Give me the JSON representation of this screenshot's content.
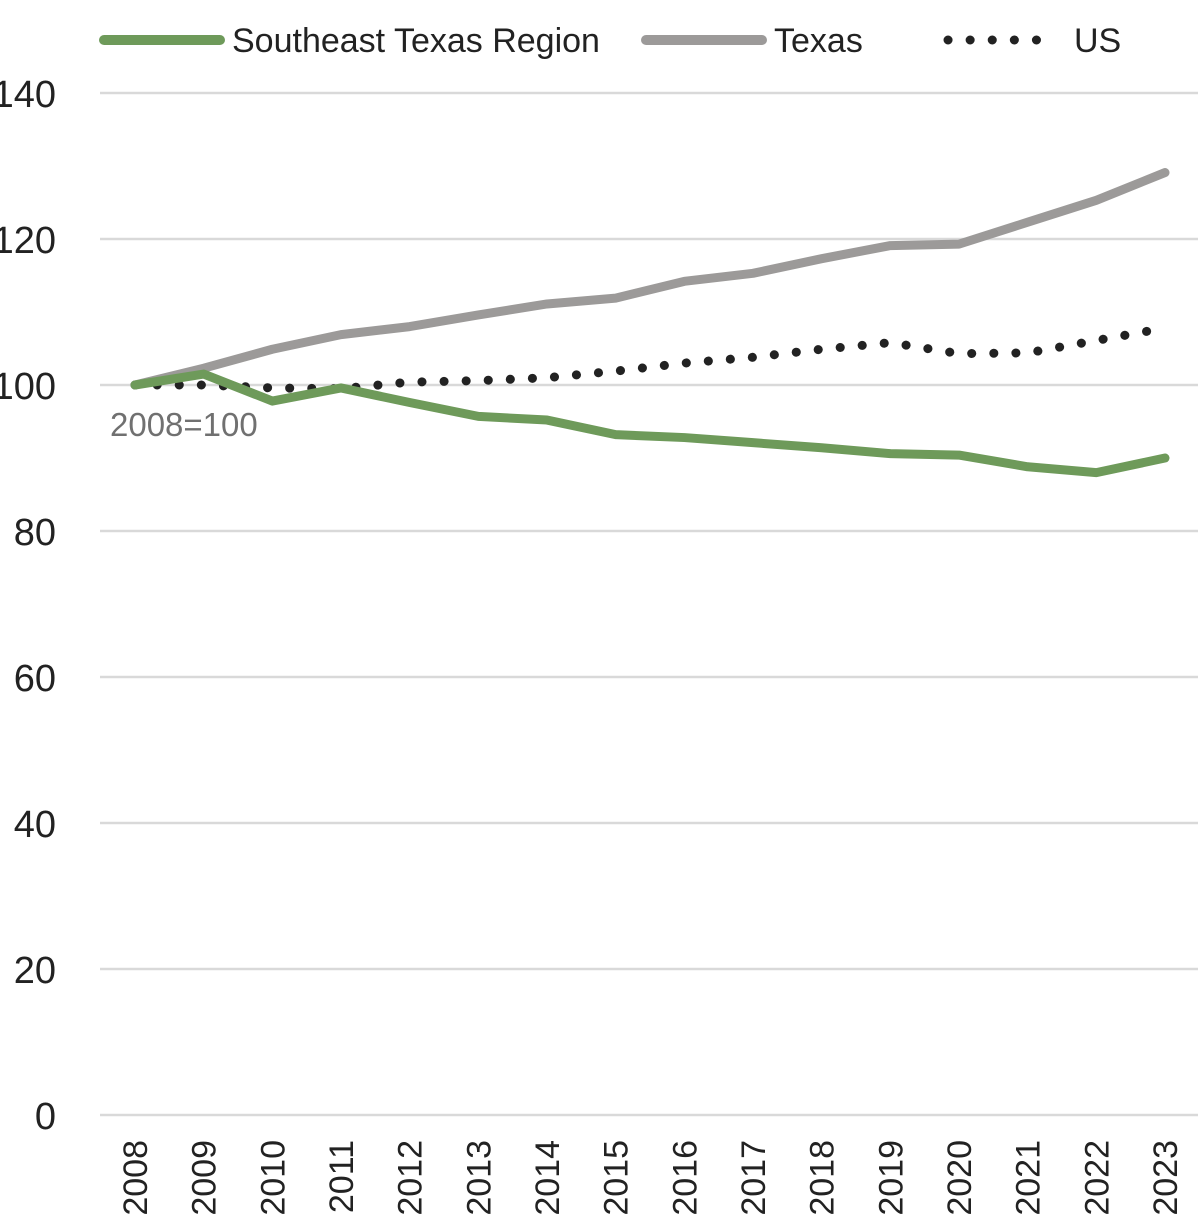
{
  "chart_data": {
    "type": "line",
    "title": "",
    "xlabel": "",
    "ylabel": "",
    "annotation": "2008=100",
    "x": [
      "2008",
      "2009",
      "2010",
      "2011",
      "2012",
      "2013",
      "2014",
      "2015",
      "2016",
      "2017",
      "2018",
      "2019",
      "2020",
      "2021",
      "2022",
      "2023"
    ],
    "ylim": [
      0,
      140
    ],
    "yticks": [
      "0",
      "20",
      "40",
      "60",
      "80",
      "100",
      "120",
      "140"
    ],
    "grid": true,
    "legend_position": "top",
    "series": [
      {
        "name": "Southeast Texas Region",
        "color": "#6e9a5a",
        "style": "solid",
        "values": [
          100,
          101.5,
          97.8,
          99.6,
          97.6,
          95.7,
          95.2,
          93.2,
          92.8,
          92.1,
          91.4,
          90.6,
          90.4,
          88.8,
          88.0,
          90.0
        ]
      },
      {
        "name": "Texas",
        "color": "#9c9a99",
        "style": "solid",
        "values": [
          100,
          102.3,
          104.9,
          106.9,
          108.0,
          109.6,
          111.1,
          111.9,
          114.2,
          115.3,
          117.3,
          119.1,
          119.3,
          122.3,
          125.3,
          129.1
        ]
      },
      {
        "name": "US",
        "color": "#222222",
        "style": "dotted",
        "values": [
          100,
          100.0,
          99.6,
          99.5,
          100.4,
          100.6,
          101.0,
          101.9,
          103.0,
          103.8,
          104.9,
          105.8,
          104.3,
          104.4,
          106.1,
          107.8
        ]
      }
    ]
  }
}
